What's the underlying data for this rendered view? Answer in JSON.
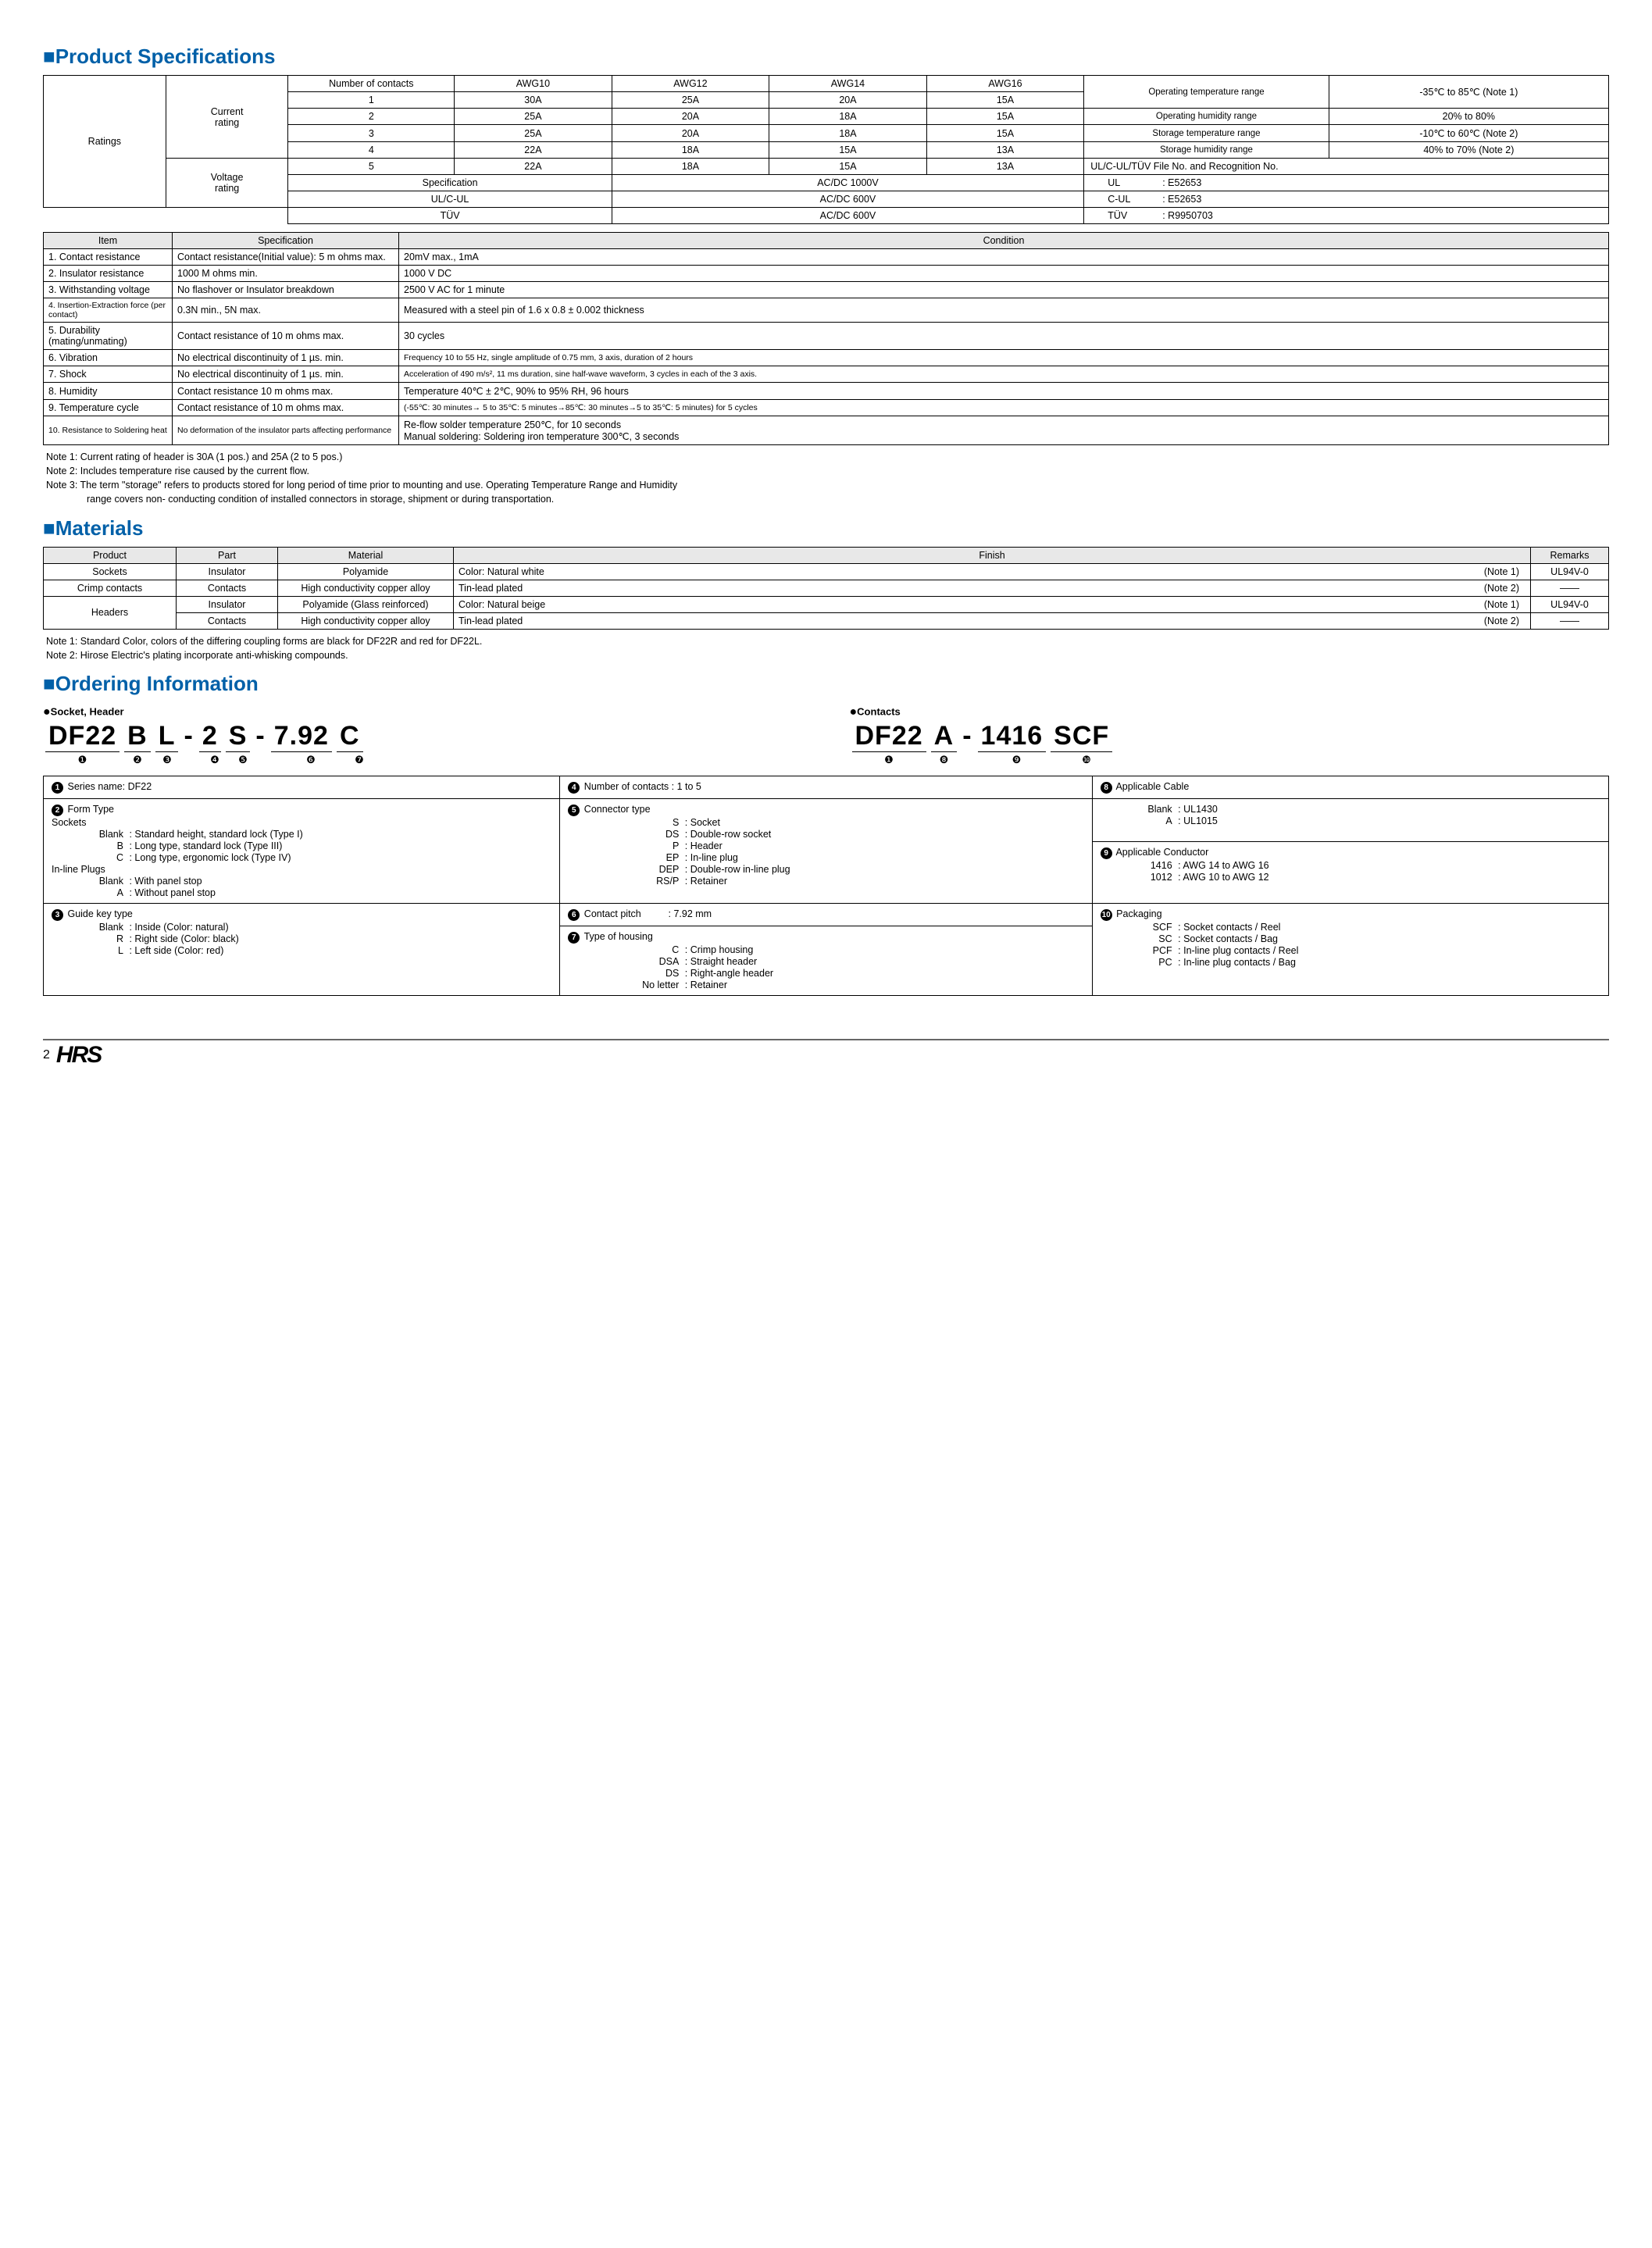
{
  "headings": {
    "spec": "Product Specifications",
    "materials": "Materials",
    "ordering": "Ordering Information"
  },
  "ratings": {
    "row_label": "Ratings",
    "current_label": "Current\nrating",
    "voltage_label": "Voltage\nrating",
    "headers": [
      "Number of contacts",
      "AWG10",
      "AWG12",
      "AWG14",
      "AWG16"
    ],
    "rows": [
      [
        "1",
        "30A",
        "25A",
        "20A",
        "15A"
      ],
      [
        "2",
        "25A",
        "20A",
        "18A",
        "15A"
      ],
      [
        "3",
        "25A",
        "20A",
        "18A",
        "15A"
      ],
      [
        "4",
        "22A",
        "18A",
        "15A",
        "13A"
      ],
      [
        "5",
        "22A",
        "18A",
        "15A",
        "13A"
      ]
    ],
    "voltage_rows": [
      [
        "Specification",
        "AC/DC    1000V"
      ],
      [
        "UL/C-UL",
        "AC/DC     600V"
      ],
      [
        "TÜV",
        "AC/DC     600V"
      ]
    ],
    "right_block": {
      "r1": [
        "Operating temperature range",
        "-35℃ to 85℃ (Note 1)"
      ],
      "r2": [
        "Operating humidity range",
        "20% to 80%"
      ],
      "r3": [
        "Storage temperature range",
        "-10℃ to 60℃ (Note 2)"
      ],
      "r4": [
        "Storage humidity range",
        "40% to 70% (Note 2)"
      ],
      "r5": "UL/C-UL/TÜV    File No. and Recognition No.",
      "r6": [
        "UL",
        ": E52653"
      ],
      "r7": [
        "C-UL",
        ": E52653"
      ],
      "r8": [
        "TÜV",
        ": R9950703"
      ]
    }
  },
  "spec_table": {
    "headers": [
      "Item",
      "Specification",
      "Condition"
    ],
    "rows": [
      [
        "1. Contact resistance",
        "Contact resistance(Initial value): 5 m ohms max.",
        "20mV max., 1mA"
      ],
      [
        "2. Insulator resistance",
        "1000 M ohms min.",
        "1000 V DC"
      ],
      [
        "3. Withstanding voltage",
        "No flashover or Insulator breakdown",
        "2500 V AC for 1 minute"
      ],
      [
        "4. Insertion-Extraction force (per contact)",
        "0.3N min., 5N max.",
        "Measured with a steel pin of 1.6 x 0.8 ± 0.002 thickness"
      ],
      [
        "5. Durability (mating/unmating)",
        "Contact resistance of 10 m ohms max.",
        "30 cycles"
      ],
      [
        "6. Vibration",
        "No electrical discontinuity of 1 µs. min.",
        "Frequency 10 to 55 Hz, single amplitude of 0.75 mm, 3 axis, duration of 2 hours"
      ],
      [
        "7. Shock",
        "No electrical discontinuity of 1 µs. min.",
        "Acceleration of 490 m/s², 11 ms duration, sine half-wave waveform, 3 cycles in each of the 3 axis."
      ],
      [
        "8. Humidity",
        "Contact resistance 10 m ohms max.",
        "Temperature 40℃ ± 2℃, 90% to 95% RH, 96 hours"
      ],
      [
        "9. Temperature cycle",
        "Contact resistance of 10 m ohms max.",
        "(-55℃: 30 minutes→ 5 to 35℃: 5 minutes→85℃: 30 minutes→5 to 35℃: 5 minutes) for 5 cycles"
      ],
      [
        "10. Resistance to Soldering heat",
        "No deformation of the insulator parts affecting performance",
        "Re-flow solder temperature 250℃, for 10 seconds\nManual soldering: Soldering iron temperature 300℃, 3 seconds"
      ]
    ],
    "small_item_rows": [
      3,
      9
    ],
    "small_cond_rows": [
      5,
      6,
      8
    ]
  },
  "spec_notes": [
    "Note 1: Current rating of header is 30A (1 pos.) and 25A (2 to 5 pos.)",
    "Note 2: Includes temperature rise caused by the current flow.",
    "Note 3: The term \"storage\" refers to products stored for long period of time prior to mounting and use. Operating Temperature Range and Humidity range covers non- conducting condition of installed connectors in storage, shipment or during transportation."
  ],
  "materials": {
    "headers": [
      "Product",
      "Part",
      "Material",
      "Finish",
      "Remarks"
    ],
    "rows": [
      [
        "Sockets",
        "Insulator",
        "Polyamide",
        "Color: Natural white",
        "(Note 1)",
        "UL94V-0"
      ],
      [
        "Crimp contacts",
        "Contacts",
        "High conductivity copper alloy",
        "Tin-lead plated",
        "(Note 2)",
        "——"
      ],
      [
        "Headers",
        "Insulator",
        "Polyamide (Glass reinforced)",
        "Color: Natural beige",
        "(Note 1)",
        "UL94V-0"
      ],
      [
        "",
        "Contacts",
        "High conductivity copper alloy",
        "Tin-lead plated",
        "(Note 2)",
        "——"
      ]
    ],
    "notes": [
      "Note 1: Standard Color, colors of the differing coupling forms are black for DF22R and red for DF22L.",
      "Note 2: Hirose Electric's plating incorporate anti-whisking compounds."
    ]
  },
  "ordering": {
    "sub1": "Socket, Header",
    "sub2": "Contacts",
    "pn1_segs": [
      "DF22",
      "B",
      "L",
      "-",
      "2",
      "S",
      "-",
      "7.92",
      "C"
    ],
    "pn1_nums": [
      "❶",
      "❷",
      "❸",
      "",
      "❹",
      "❺",
      "",
      "❻",
      "❼"
    ],
    "pn2_segs": [
      "DF22",
      "A",
      "-",
      "1416",
      "SCF"
    ],
    "pn2_nums": [
      "❶",
      "❽",
      "",
      "❾",
      "❿"
    ],
    "col1": {
      "t1": "Series name: DF22",
      "t2": "Form Type",
      "sockets": "Sockets",
      "s_items": [
        [
          "Blank",
          ": Standard height, standard lock (Type I)"
        ],
        [
          "B",
          ": Long type, standard lock (Type III)"
        ],
        [
          "C",
          ": Long type, ergonomic lock (Type IV)"
        ]
      ],
      "plugs": "In-line Plugs",
      "p_items": [
        [
          "Blank",
          ": With panel stop"
        ],
        [
          "A",
          ": Without panel stop"
        ]
      ],
      "t3": "Guide key type",
      "g_items": [
        [
          "Blank",
          ": Inside (Color: natural)"
        ],
        [
          "R",
          ": Right side (Color: black)"
        ],
        [
          "L",
          ": Left side (Color: red)"
        ]
      ]
    },
    "col2": {
      "t4": "Number of contacts : 1 to 5",
      "t5": "Connector type",
      "c_items": [
        [
          "S",
          ": Socket"
        ],
        [
          "DS",
          ": Double-row socket"
        ],
        [
          "P",
          ": Header"
        ],
        [
          "EP",
          ": In-line plug"
        ],
        [
          "DEP",
          ": Double-row in-line plug"
        ],
        [
          "RS/P",
          ": Retainer"
        ]
      ],
      "t6": "Contact pitch",
      "t6v": ": 7.92 mm",
      "t7": "Type of housing",
      "h_items": [
        [
          "C",
          ": Crimp housing"
        ],
        [
          "DSA",
          ": Straight header"
        ],
        [
          "DS",
          ": Right-angle header"
        ],
        [
          "No letter",
          ": Retainer"
        ]
      ]
    },
    "col3": {
      "t8": "Applicable Cable",
      "a_items": [
        [
          "Blank",
          ": UL1430"
        ],
        [
          "A",
          ": UL1015"
        ]
      ],
      "t9": "Applicable Conductor",
      "cond_items": [
        [
          "1416",
          ": AWG 14 to AWG 16"
        ],
        [
          "1012",
          ": AWG 10 to AWG 12"
        ]
      ],
      "t10": "Packaging",
      "pk_items": [
        [
          "SCF",
          ": Socket contacts / Reel"
        ],
        [
          "SC",
          ": Socket contacts / Bag"
        ],
        [
          "PCF",
          ": In-line plug contacts / Reel"
        ],
        [
          "PC",
          ": In-line plug contacts / Bag"
        ]
      ]
    }
  },
  "footer": {
    "page": "2",
    "logo": "HRS"
  }
}
